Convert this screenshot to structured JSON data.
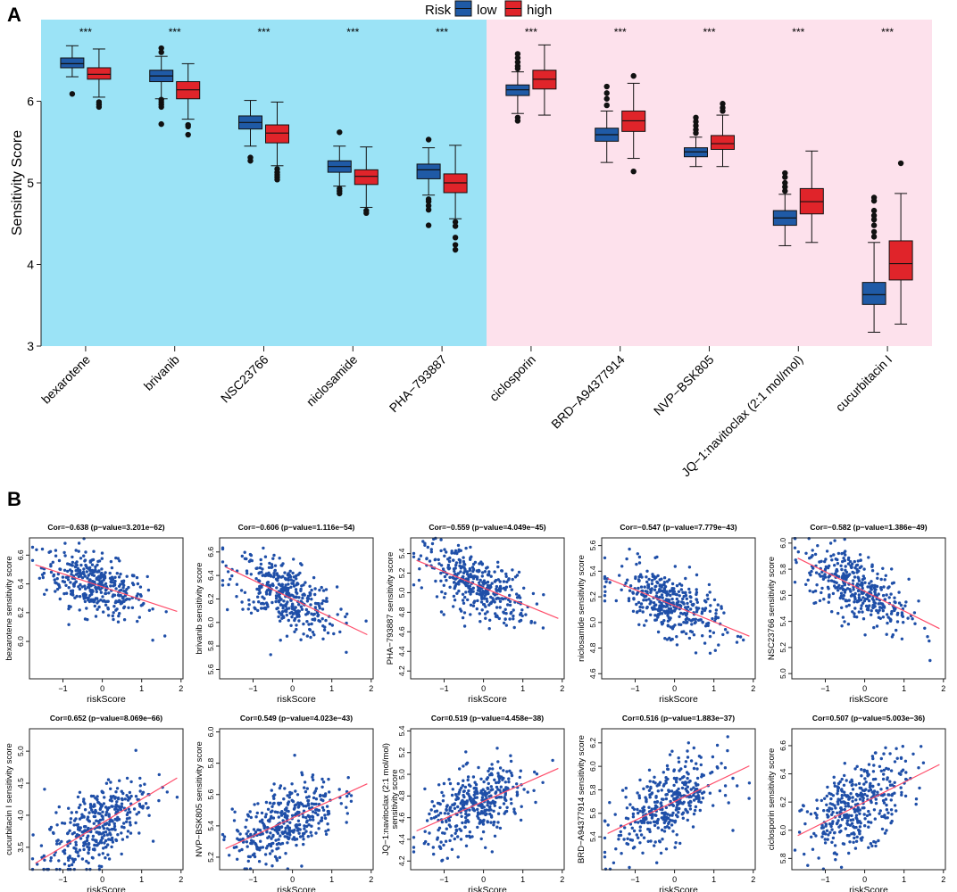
{
  "panel_a": {
    "label": "A",
    "legend": {
      "title": "Risk",
      "entries": [
        {
          "name": "low",
          "color": "#1f5aa6"
        },
        {
          "name": "high",
          "color": "#e0242a"
        }
      ]
    },
    "background_colors": {
      "left": "#9be3f6",
      "right": "#fde1ec"
    }
  },
  "panel_b": {
    "label": "B"
  },
  "chart_data": [
    {
      "type": "box",
      "title": "",
      "ylabel": "Sensitivity Score",
      "xlabel": "",
      "ylim": [
        3,
        7
      ],
      "yticks": [
        3,
        4,
        5,
        6
      ],
      "categories": [
        "bexarotene",
        "brivanib",
        "NSC23766",
        "niclosamide",
        "PHA−793887",
        "ciclosporin",
        "BRD−A94377914",
        "NVP−BSK805",
        "JQ−1:navitoclax (2:1 mol/mol)",
        "cucurbitacin I"
      ],
      "significance": [
        "***",
        "***",
        "***",
        "***",
        "***",
        "***",
        "***",
        "***",
        "***",
        "***"
      ],
      "shading": [
        {
          "from": 0,
          "to": 5,
          "color": "#9be3f6"
        },
        {
          "from": 5,
          "to": 10,
          "color": "#fde1ec"
        }
      ],
      "series": [
        {
          "name": "low",
          "color": "#1f5aa6",
          "boxes": [
            {
              "min": 6.3,
              "q1": 6.41,
              "median": 6.46,
              "q3": 6.53,
              "max": 6.68,
              "outliers": [
                6.09
              ]
            },
            {
              "min": 6.03,
              "q1": 6.24,
              "median": 6.31,
              "q3": 6.38,
              "max": 6.55,
              "outliers": [
                6.65,
                6.6,
                6.02,
                5.99,
                5.96,
                5.93,
                5.72
              ]
            },
            {
              "min": 5.45,
              "q1": 5.66,
              "median": 5.74,
              "q3": 5.82,
              "max": 6.01,
              "outliers": [
                5.31,
                5.27
              ]
            },
            {
              "min": 4.96,
              "q1": 5.13,
              "median": 5.2,
              "q3": 5.27,
              "max": 5.45,
              "outliers": [
                5.62,
                4.93,
                4.9,
                4.87
              ]
            },
            {
              "min": 4.85,
              "q1": 5.05,
              "median": 5.16,
              "q3": 5.23,
              "max": 5.43,
              "outliers": [
                5.53,
                4.8,
                4.77,
                4.72,
                4.67,
                4.48
              ]
            },
            {
              "min": 5.85,
              "q1": 6.07,
              "median": 6.14,
              "q3": 6.2,
              "max": 6.36,
              "outliers": [
                6.58,
                6.53,
                6.48,
                6.43,
                6.4,
                5.8,
                5.76
              ]
            },
            {
              "min": 5.25,
              "q1": 5.51,
              "median": 5.59,
              "q3": 5.67,
              "max": 5.88,
              "outliers": [
                6.18,
                6.1,
                6.03,
                5.95
              ]
            },
            {
              "min": 5.2,
              "q1": 5.32,
              "median": 5.38,
              "q3": 5.43,
              "max": 5.56,
              "outliers": [
                5.8,
                5.75,
                5.7,
                5.65,
                5.61
              ]
            },
            {
              "min": 4.23,
              "q1": 4.48,
              "median": 4.57,
              "q3": 4.66,
              "max": 4.86,
              "outliers": [
                5.12,
                5.07,
                5.0,
                4.95,
                4.9
              ]
            },
            {
              "min": 3.17,
              "q1": 3.51,
              "median": 3.63,
              "q3": 3.78,
              "max": 4.27,
              "outliers": [
                4.82,
                4.78,
                4.66,
                4.6,
                4.55,
                4.48,
                4.4,
                4.34
              ]
            }
          ]
        },
        {
          "name": "high",
          "color": "#e0242a",
          "boxes": [
            {
              "min": 6.05,
              "q1": 6.27,
              "median": 6.33,
              "q3": 6.41,
              "max": 6.64,
              "outliers": [
                5.99,
                5.96,
                5.93
              ]
            },
            {
              "min": 5.78,
              "q1": 6.03,
              "median": 6.14,
              "q3": 6.24,
              "max": 6.46,
              "outliers": [
                5.71,
                5.69,
                5.59
              ]
            },
            {
              "min": 5.21,
              "q1": 5.49,
              "median": 5.61,
              "q3": 5.71,
              "max": 5.99,
              "outliers": [
                5.17,
                5.13,
                5.1,
                5.07,
                5.04
              ]
            },
            {
              "min": 4.7,
              "q1": 4.98,
              "median": 5.08,
              "q3": 5.16,
              "max": 5.44,
              "outliers": [
                4.66,
                4.63
              ]
            },
            {
              "min": 4.56,
              "q1": 4.88,
              "median": 5.0,
              "q3": 5.11,
              "max": 5.46,
              "outliers": [
                4.52,
                4.47,
                4.33,
                4.24,
                4.18
              ]
            },
            {
              "min": 5.83,
              "q1": 6.15,
              "median": 6.27,
              "q3": 6.38,
              "max": 6.69,
              "outliers": []
            },
            {
              "min": 5.3,
              "q1": 5.63,
              "median": 5.76,
              "q3": 5.88,
              "max": 6.22,
              "outliers": [
                6.31,
                5.14
              ]
            },
            {
              "min": 5.2,
              "q1": 5.41,
              "median": 5.48,
              "q3": 5.58,
              "max": 5.83,
              "outliers": [
                5.97,
                5.92,
                5.88
              ]
            },
            {
              "min": 4.27,
              "q1": 4.62,
              "median": 4.77,
              "q3": 4.93,
              "max": 5.39,
              "outliers": []
            },
            {
              "min": 3.27,
              "q1": 3.81,
              "median": 4.01,
              "q3": 4.29,
              "max": 4.87,
              "outliers": [
                5.24
              ]
            }
          ]
        }
      ]
    },
    {
      "type": "scatter",
      "title": "Cor=−0.638 (p−value=3.201e−62)",
      "xlabel": "riskScore",
      "ylabel": "bexarotene sensitivity score",
      "xlim": [
        -1.85,
        2.05
      ],
      "ylim": [
        5.74,
        6.72
      ],
      "xticks": [
        -1,
        0,
        1,
        2
      ],
      "yticks": [
        6.0,
        6.2,
        6.4,
        6.6
      ],
      "slope": -0.09,
      "intercept": 6.38,
      "point_sd": 0.1,
      "n_points": 380,
      "point_color": "#1f4fa8",
      "line_color": "#ff4d6a"
    },
    {
      "type": "scatter",
      "title": "Cor=−0.606 (p−value=1.116e−54)",
      "xlabel": "riskScore",
      "ylabel": "brivanib sensitivity score",
      "xlim": [
        -1.85,
        2.05
      ],
      "ylim": [
        5.52,
        6.72
      ],
      "xticks": [
        -1,
        0,
        1,
        2
      ],
      "yticks": [
        5.6,
        5.8,
        6.0,
        6.2,
        6.4,
        6.6
      ],
      "slope": -0.16,
      "intercept": 6.2,
      "point_sd": 0.14,
      "n_points": 380,
      "point_color": "#1f4fa8",
      "line_color": "#ff4d6a"
    },
    {
      "type": "scatter",
      "title": "Cor=−0.559 (p−value=4.049e−45)",
      "xlabel": "riskScore",
      "ylabel": "PHA−793887 sensitivity score",
      "xlim": [
        -1.85,
        2.05
      ],
      "ylim": [
        4.12,
        5.56
      ],
      "xticks": [
        -1,
        0,
        1,
        2
      ],
      "yticks": [
        4.2,
        4.4,
        4.6,
        4.8,
        5.0,
        5.2,
        5.4
      ],
      "slope": -0.165,
      "intercept": 5.05,
      "point_sd": 0.15,
      "n_points": 380,
      "point_color": "#1f4fa8",
      "line_color": "#ff4d6a"
    },
    {
      "type": "scatter",
      "title": "Cor=−0.547 (p−value=7.779e−43)",
      "xlabel": "riskScore",
      "ylabel": "niclosamide sensitivity score",
      "xlim": [
        -1.85,
        2.05
      ],
      "ylim": [
        4.56,
        5.66
      ],
      "xticks": [
        -1,
        0,
        1,
        2
      ],
      "yticks": [
        4.6,
        4.8,
        5.0,
        5.2,
        5.4,
        5.6
      ],
      "slope": -0.125,
      "intercept": 5.13,
      "point_sd": 0.12,
      "n_points": 380,
      "point_color": "#1f4fa8",
      "line_color": "#ff4d6a"
    },
    {
      "type": "scatter",
      "title": "Cor=−0.582 (p−value=1.386e−49)",
      "xlabel": "riskScore",
      "ylabel": "NSC23766 sensitivity score",
      "xlim": [
        -1.85,
        2.05
      ],
      "ylim": [
        4.96,
        6.04
      ],
      "xticks": [
        -1,
        0,
        1,
        2
      ],
      "yticks": [
        5.0,
        5.2,
        5.4,
        5.6,
        5.8,
        6.0
      ],
      "slope": -0.15,
      "intercept": 5.63,
      "point_sd": 0.13,
      "n_points": 380,
      "point_color": "#1f4fa8",
      "line_color": "#ff4d6a"
    },
    {
      "type": "scatter",
      "title": "Cor=0.652 (p−value=8.069e−66)",
      "xlabel": "riskScore",
      "ylabel": "cucurbitacin I sensitivity score",
      "xlim": [
        -1.85,
        2.05
      ],
      "ylim": [
        3.15,
        5.35
      ],
      "xticks": [
        -1,
        0,
        1,
        2
      ],
      "yticks": [
        3.5,
        4.0,
        4.5,
        5.0
      ],
      "slope": 0.37,
      "intercept": 3.88,
      "point_sd": 0.3,
      "n_points": 380,
      "point_color": "#1f4fa8",
      "line_color": "#ff4d6a"
    },
    {
      "type": "scatter",
      "title": "Cor=0.549 (p−value=4.023e−43)",
      "xlabel": "riskScore",
      "ylabel": "NVP−BSK805 sensitivity score",
      "xlim": [
        -1.85,
        2.05
      ],
      "ylim": [
        5.12,
        6.02
      ],
      "xticks": [
        -1,
        0,
        1,
        2
      ],
      "yticks": [
        5.2,
        5.4,
        5.6,
        5.8,
        6.0
      ],
      "slope": 0.115,
      "intercept": 5.45,
      "point_sd": 0.11,
      "n_points": 380,
      "point_color": "#1f4fa8",
      "line_color": "#ff4d6a"
    },
    {
      "type": "scatter",
      "title": "Cor=0.519 (p−value=4.458e−38)",
      "xlabel": "riskScore",
      "ylabel": "JQ−1:navitoclax (2:1 mol/mol)",
      "ylabel2": "sensitivity score",
      "xlim": [
        -1.85,
        2.05
      ],
      "ylim": [
        4.12,
        5.42
      ],
      "xticks": [
        -1,
        0,
        1,
        2
      ],
      "yticks": [
        4.2,
        4.4,
        4.6,
        4.8,
        5.0,
        5.2,
        5.4
      ],
      "slope": 0.16,
      "intercept": 4.75,
      "point_sd": 0.16,
      "n_points": 380,
      "point_color": "#1f4fa8",
      "line_color": "#ff4d6a"
    },
    {
      "type": "scatter",
      "title": "Cor=0.516 (p−value=1.883e−37)",
      "xlabel": "riskScore",
      "ylabel": "BRD−A94377914 sensitivity score",
      "xlim": [
        -1.85,
        2.05
      ],
      "ylim": [
        5.12,
        6.32
      ],
      "xticks": [
        -1,
        0,
        1,
        2
      ],
      "yticks": [
        5.4,
        5.6,
        5.8,
        6.0,
        6.2
      ],
      "slope": 0.16,
      "intercept": 5.7,
      "point_sd": 0.16,
      "n_points": 380,
      "point_color": "#1f4fa8",
      "line_color": "#ff4d6a"
    },
    {
      "type": "scatter",
      "title": "Cor=0.507 (p−value=5.003e−36)",
      "xlabel": "riskScore",
      "ylabel": "ciclosporin sensitivity score",
      "xlim": [
        -1.85,
        2.05
      ],
      "ylim": [
        5.72,
        6.72
      ],
      "xticks": [
        -1,
        0,
        1,
        2
      ],
      "yticks": [
        5.8,
        6.0,
        6.2,
        6.4,
        6.6
      ],
      "slope": 0.14,
      "intercept": 6.2,
      "point_sd": 0.14,
      "n_points": 380,
      "point_color": "#1f4fa8",
      "line_color": "#ff4d6a"
    }
  ]
}
